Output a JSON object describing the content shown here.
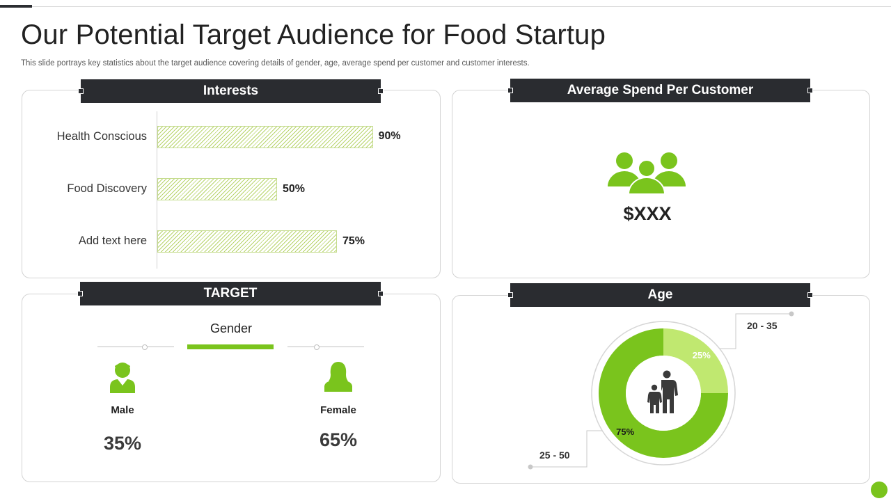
{
  "page": {
    "title": "Our Potential Target Audience for Food Startup",
    "subtitle": "This slide portrays key statistics about the target audience covering details of gender, age, average spend per customer and customer interests."
  },
  "panels": {
    "interests": {
      "header": "Interests"
    },
    "spend": {
      "header": "Average Spend Per Customer",
      "value": "$XXX",
      "icon": "group-of-people-icon"
    },
    "target": {
      "header": "TARGET",
      "gender_title": "Gender",
      "male": {
        "label": "Male",
        "pct": "35%",
        "icon": "male-person-icon"
      },
      "female": {
        "label": "Female",
        "pct": "65%",
        "icon": "female-person-icon"
      }
    },
    "age": {
      "header": "Age",
      "icon": "parent-child-icon"
    }
  },
  "colors": {
    "dark": "#2a2c30",
    "green": "#7ac41d",
    "light_green": "#c0e870",
    "hatch": "#b7d46a"
  },
  "chart_data": [
    {
      "type": "bar",
      "orientation": "horizontal",
      "title": "Interests",
      "categories": [
        "Health Conscious",
        "Food Discovery",
        "Add text here"
      ],
      "values": [
        90,
        50,
        75
      ],
      "value_labels": [
        "90%",
        "50%",
        "75%"
      ],
      "xlim": [
        0,
        100
      ]
    },
    {
      "type": "pie",
      "style": "donut",
      "title": "Age",
      "categories": [
        "20 - 35",
        "25 - 50"
      ],
      "values": [
        25,
        75
      ],
      "value_labels": [
        "25%",
        "75%"
      ]
    }
  ]
}
